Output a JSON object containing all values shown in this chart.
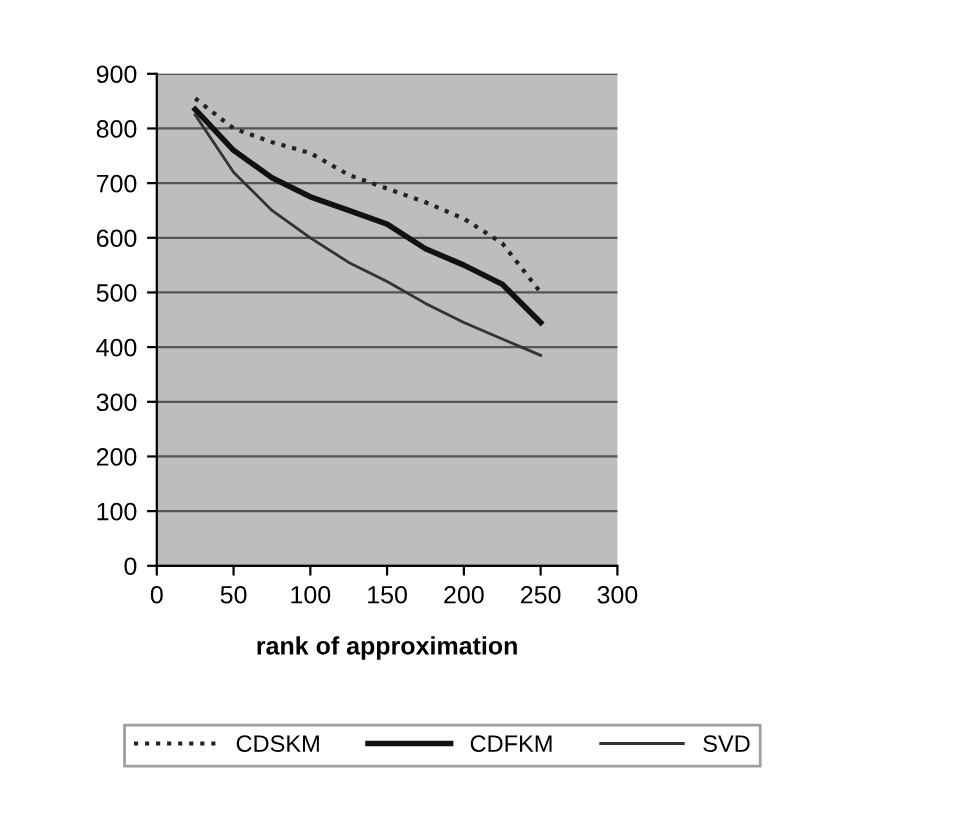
{
  "chart_data": {
    "type": "line",
    "xlabel": "rank of approximation",
    "x": [
      25,
      50,
      75,
      100,
      125,
      150,
      175,
      200,
      225,
      250
    ],
    "series": [
      {
        "name": "CDSKM",
        "color": "#222222",
        "line_style": "dotted",
        "values": [
          855,
          800,
          775,
          755,
          715,
          690,
          665,
          635,
          590,
          500
        ]
      },
      {
        "name": "CDFKM",
        "color": "#111111",
        "line_style": "solid",
        "values": [
          835,
          760,
          710,
          675,
          650,
          625,
          580,
          550,
          515,
          445
        ]
      },
      {
        "name": "SVD",
        "color": "#333333",
        "line_style": "solid",
        "values": [
          825,
          720,
          650,
          600,
          555,
          520,
          480,
          445,
          415,
          385
        ]
      }
    ],
    "xlim": [
      0,
      300
    ],
    "xticks": [
      0,
      50,
      100,
      150,
      200,
      250,
      300
    ],
    "ylim": [
      0,
      900
    ],
    "yticks": [
      0,
      100,
      200,
      300,
      400,
      500,
      600,
      700,
      800,
      900
    ],
    "grid": "y",
    "legend": "bottom",
    "marker": "none"
  }
}
